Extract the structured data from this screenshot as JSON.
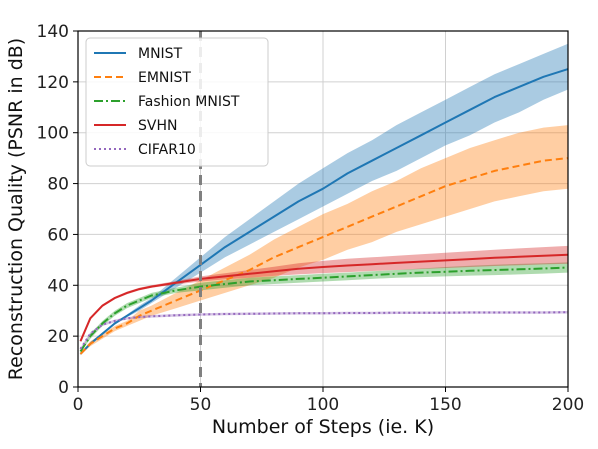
{
  "chart_data": {
    "type": "line",
    "xlabel": "Number of Steps (ie. K)",
    "ylabel": "Reconstruction Quality (PSNR in dB)",
    "xlim": [
      0,
      200
    ],
    "ylim": [
      0,
      140
    ],
    "xticks": [
      0,
      50,
      100,
      150,
      200
    ],
    "yticks": [
      0,
      20,
      40,
      60,
      80,
      100,
      120,
      140
    ],
    "grid": true,
    "legend_position": "top-left",
    "vline": {
      "x": 50,
      "color": "#808080",
      "style": "dashed"
    },
    "x": [
      1,
      5,
      10,
      15,
      20,
      25,
      30,
      40,
      50,
      60,
      70,
      80,
      90,
      100,
      110,
      120,
      130,
      140,
      150,
      160,
      170,
      180,
      190,
      200
    ],
    "series": [
      {
        "name": "MNIST",
        "color": "#1f77b4",
        "dash": "solid",
        "values": [
          13,
          17,
          21,
          25,
          28,
          31,
          34,
          41,
          48,
          55,
          61,
          67,
          73,
          78,
          84,
          89,
          94,
          99,
          104,
          109,
          114,
          118,
          122,
          125
        ],
        "lower": [
          12.5,
          16.5,
          20.5,
          24.5,
          27.5,
          30,
          33,
          39,
          45,
          51,
          56,
          61,
          66,
          71,
          76,
          81,
          85,
          90,
          95,
          99,
          104,
          108,
          113,
          117
        ],
        "upper": [
          13.5,
          17.5,
          21.5,
          25.5,
          28.5,
          32,
          35,
          43,
          51,
          59,
          66,
          73,
          80,
          86,
          92,
          97,
          103,
          108,
          113,
          118,
          123,
          127,
          131,
          135
        ]
      },
      {
        "name": "EMNIST",
        "color": "#ff7f0e",
        "dash": "dashed",
        "values": [
          13,
          17,
          20,
          23,
          25,
          28,
          30,
          34,
          38,
          42,
          46,
          51,
          55,
          59,
          63,
          67,
          71,
          75,
          79,
          82,
          85,
          87,
          89,
          90
        ],
        "lower": [
          12.5,
          16,
          19,
          22,
          24,
          26,
          28,
          31,
          34,
          37,
          40,
          43,
          47,
          50,
          54,
          57,
          61,
          64,
          67,
          70,
          73,
          75,
          77,
          78
        ],
        "upper": [
          13.5,
          18,
          21,
          24,
          26,
          30,
          32,
          37,
          42,
          47,
          52,
          58,
          63,
          68,
          72,
          77,
          81,
          86,
          90,
          94,
          97,
          100,
          102,
          103
        ]
      },
      {
        "name": "Fashion MNIST",
        "color": "#2ca02c",
        "dash": "dashdot",
        "values": [
          14,
          20,
          25,
          29,
          32,
          34,
          36,
          38,
          39.5,
          40.5,
          41.5,
          42,
          42.5,
          43,
          43.5,
          44,
          44.5,
          45,
          45.3,
          45.7,
          46,
          46.3,
          46.6,
          47
        ],
        "lower": [
          13.5,
          19,
          24,
          28,
          31,
          33,
          35,
          37,
          38,
          39,
          40,
          40.5,
          41,
          41.5,
          42,
          42.5,
          43,
          43.2,
          43.5,
          43.8,
          44,
          44.3,
          44.6,
          45
        ],
        "upper": [
          14.5,
          21,
          26,
          30,
          33,
          35,
          37,
          39,
          41,
          42,
          43,
          43.5,
          44,
          44.5,
          45,
          45.5,
          46,
          46.6,
          47.2,
          47.7,
          48.1,
          48.4,
          48.7,
          49
        ]
      },
      {
        "name": "SVHN",
        "color": "#d62728",
        "dash": "solid",
        "values": [
          18,
          27,
          32,
          35,
          37,
          38.5,
          39.5,
          41,
          42.5,
          43.5,
          44.5,
          45.5,
          46.5,
          47.2,
          47.8,
          48.3,
          48.8,
          49.3,
          49.8,
          50.3,
          50.8,
          51.2,
          51.6,
          52
        ],
        "lower": [
          17.5,
          26.5,
          31.5,
          34.5,
          36.5,
          38,
          39,
          40.3,
          41.5,
          42.3,
          43,
          43.7,
          44.3,
          44.8,
          45.2,
          45.6,
          46,
          46.4,
          46.8,
          47.2,
          47.6,
          47.9,
          48.2,
          48.5
        ],
        "upper": [
          18.5,
          27.5,
          32.5,
          35.5,
          37.5,
          39,
          40,
          41.7,
          43.5,
          44.7,
          46,
          47.3,
          48.7,
          49.6,
          50.4,
          51,
          51.6,
          52.2,
          52.8,
          53.4,
          54,
          54.5,
          55,
          55.5
        ]
      },
      {
        "name": "CIFAR10",
        "color": "#9467bd",
        "dash": "dotted",
        "values": [
          15,
          21,
          24.5,
          26,
          27,
          27.5,
          27.8,
          28.2,
          28.5,
          28.7,
          28.8,
          28.9,
          29,
          29,
          29.1,
          29.1,
          29.2,
          29.2,
          29.2,
          29.3,
          29.3,
          29.3,
          29.3,
          29.4
        ],
        "lower": [
          14.5,
          20.5,
          24,
          25.5,
          26.5,
          27,
          27.3,
          27.7,
          28,
          28.2,
          28.3,
          28.4,
          28.5,
          28.5,
          28.6,
          28.6,
          28.7,
          28.7,
          28.7,
          28.8,
          28.8,
          28.8,
          28.8,
          28.9
        ],
        "upper": [
          15.5,
          21.5,
          25,
          26.5,
          27.5,
          28,
          28.3,
          28.7,
          29,
          29.2,
          29.3,
          29.4,
          29.5,
          29.5,
          29.6,
          29.6,
          29.7,
          29.7,
          29.7,
          29.8,
          29.8,
          29.8,
          29.8,
          29.9
        ]
      }
    ]
  }
}
